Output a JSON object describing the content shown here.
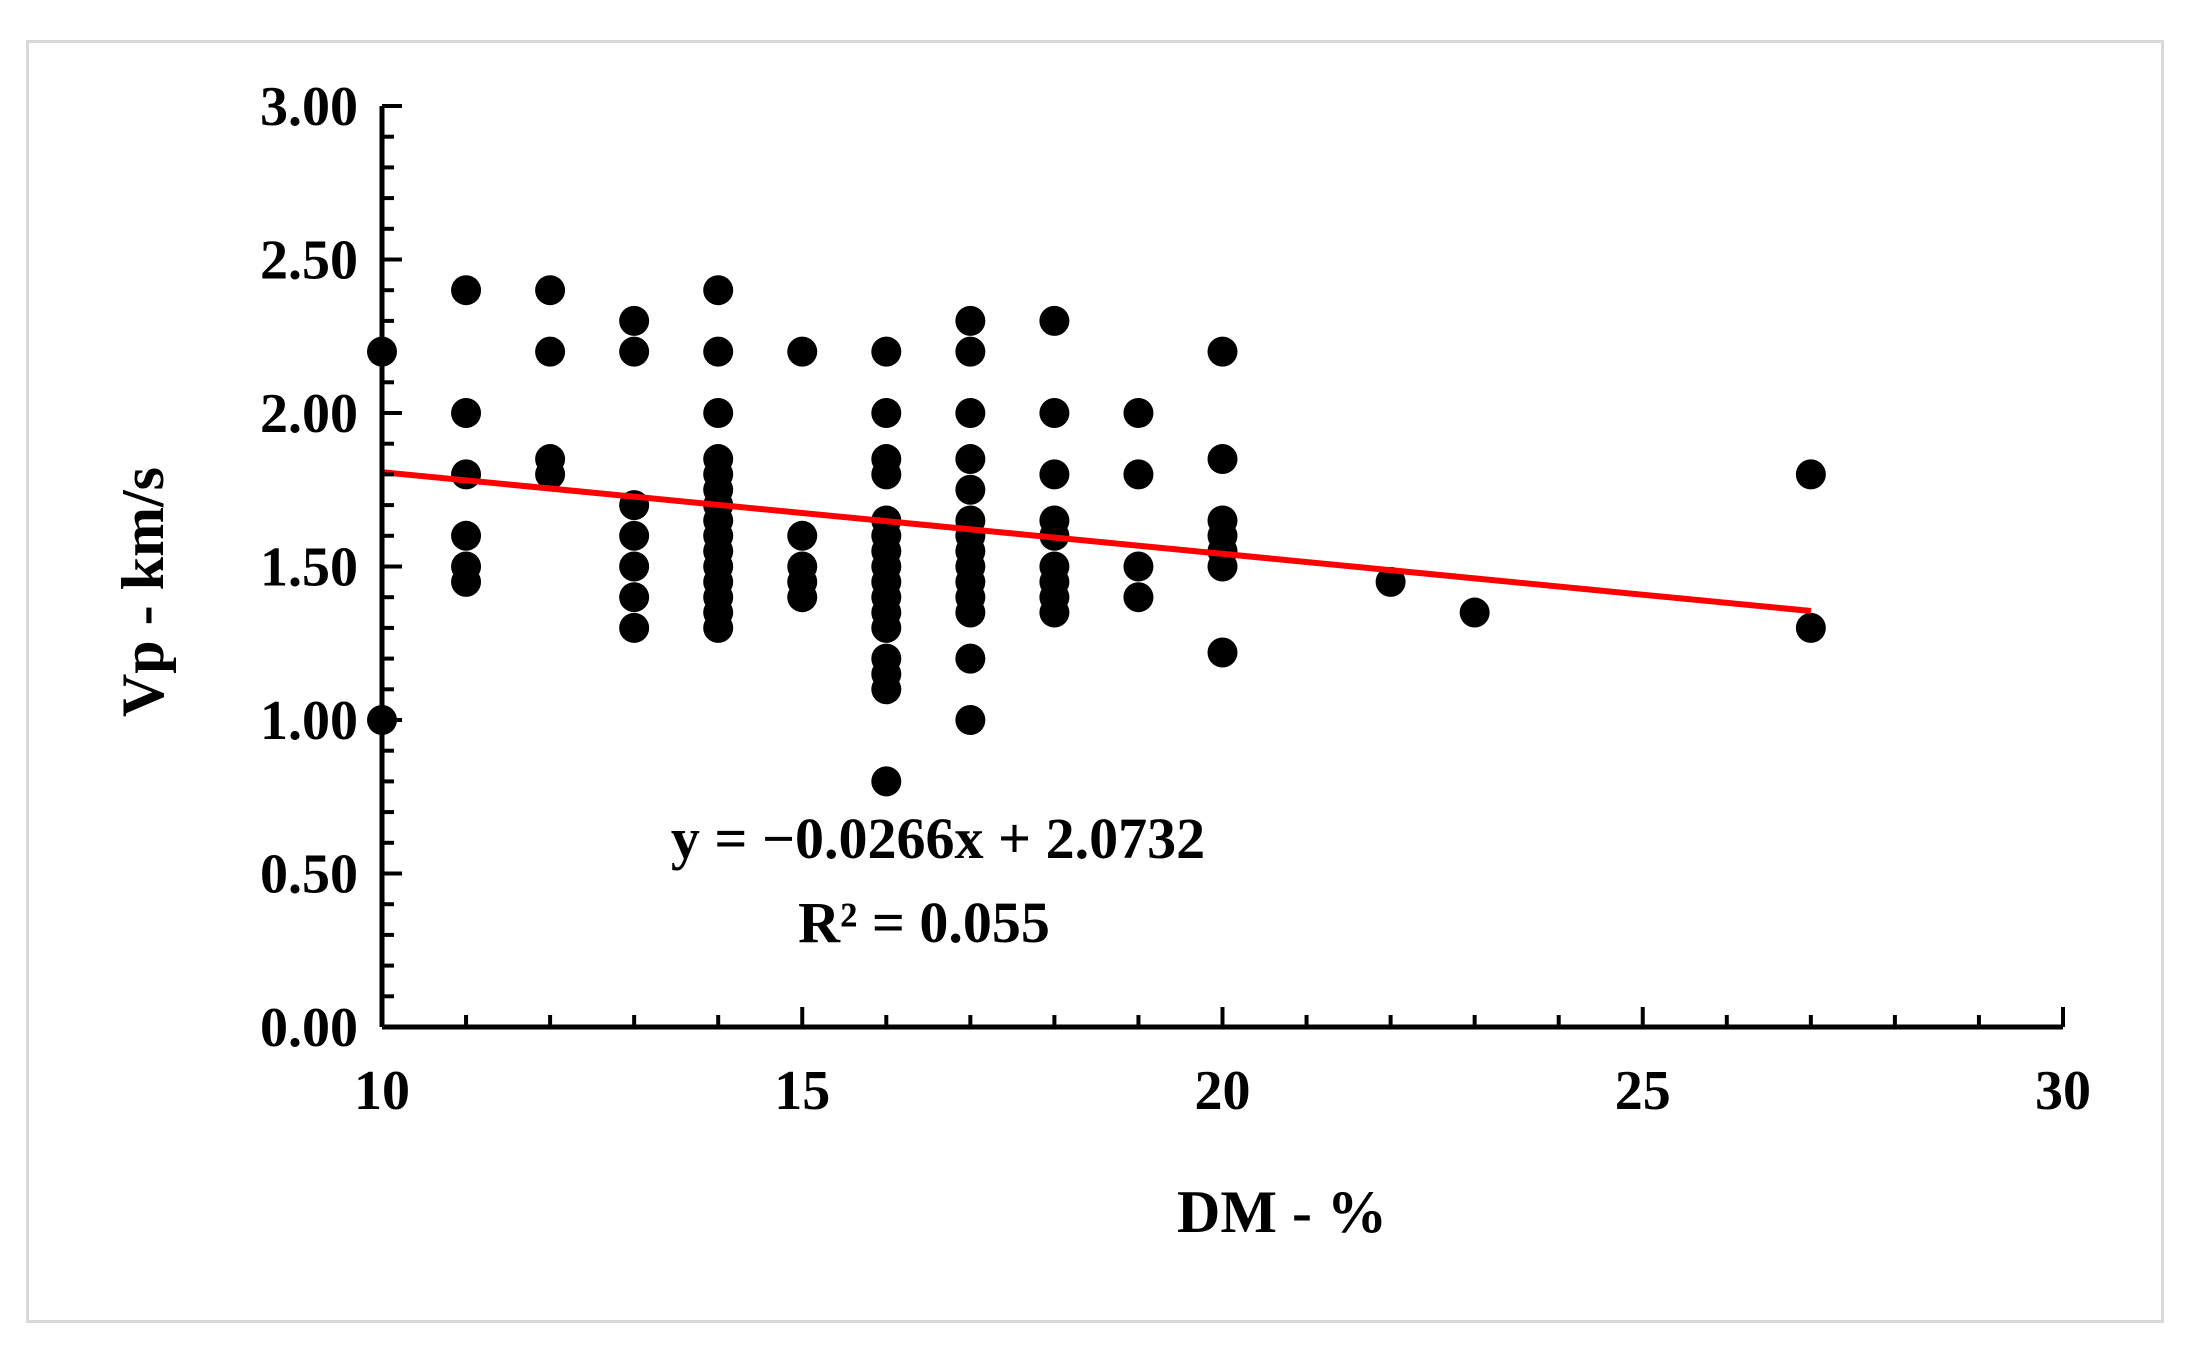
{
  "chart_data": {
    "type": "scatter",
    "xlabel": "DM - %",
    "ylabel": "Vp - km/s",
    "xlim": [
      10,
      30
    ],
    "ylim": [
      0,
      3
    ],
    "xticks": [
      "10",
      "15",
      "20",
      "25",
      "30"
    ],
    "yticks": [
      "0.00",
      "0.50",
      "1.00",
      "1.50",
      "2.00",
      "2.50",
      "3.00"
    ],
    "grid": false,
    "marker_color": "#000000",
    "trendline": {
      "slope": -0.0266,
      "intercept": 2.0732,
      "x_range": [
        10,
        27
      ],
      "color": "#ff0000"
    },
    "annotations": [
      "y = −0.0266x + 2.0732",
      "R² = 0.055"
    ],
    "points": [
      [
        10,
        2.2
      ],
      [
        10,
        1.0
      ],
      [
        11,
        2.4
      ],
      [
        11,
        2.0
      ],
      [
        11,
        1.8
      ],
      [
        11,
        1.6
      ],
      [
        11,
        1.5
      ],
      [
        11,
        1.45
      ],
      [
        12,
        2.4
      ],
      [
        12,
        2.2
      ],
      [
        12,
        1.85
      ],
      [
        12,
        1.8
      ],
      [
        13,
        2.3
      ],
      [
        13,
        2.2
      ],
      [
        13,
        1.7
      ],
      [
        13,
        1.6
      ],
      [
        13,
        1.5
      ],
      [
        13,
        1.4
      ],
      [
        13,
        1.3
      ],
      [
        14,
        2.4
      ],
      [
        14,
        2.2
      ],
      [
        14,
        2.0
      ],
      [
        14,
        1.85
      ],
      [
        14,
        1.8
      ],
      [
        14,
        1.75
      ],
      [
        14,
        1.7
      ],
      [
        14,
        1.65
      ],
      [
        14,
        1.6
      ],
      [
        14,
        1.55
      ],
      [
        14,
        1.5
      ],
      [
        14,
        1.45
      ],
      [
        14,
        1.4
      ],
      [
        14,
        1.35
      ],
      [
        14,
        1.3
      ],
      [
        15,
        2.2
      ],
      [
        15,
        1.6
      ],
      [
        15,
        1.5
      ],
      [
        15,
        1.45
      ],
      [
        15,
        1.4
      ],
      [
        16,
        2.2
      ],
      [
        16,
        2.0
      ],
      [
        16,
        1.85
      ],
      [
        16,
        1.8
      ],
      [
        16,
        1.65
      ],
      [
        16,
        1.6
      ],
      [
        16,
        1.55
      ],
      [
        16,
        1.5
      ],
      [
        16,
        1.45
      ],
      [
        16,
        1.4
      ],
      [
        16,
        1.35
      ],
      [
        16,
        1.3
      ],
      [
        16,
        1.2
      ],
      [
        16,
        1.15
      ],
      [
        16,
        1.1
      ],
      [
        16,
        0.8
      ],
      [
        17,
        2.3
      ],
      [
        17,
        2.2
      ],
      [
        17,
        2.0
      ],
      [
        17,
        1.85
      ],
      [
        17,
        1.75
      ],
      [
        17,
        1.65
      ],
      [
        17,
        1.6
      ],
      [
        17,
        1.55
      ],
      [
        17,
        1.5
      ],
      [
        17,
        1.45
      ],
      [
        17,
        1.4
      ],
      [
        17,
        1.35
      ],
      [
        17,
        1.2
      ],
      [
        17,
        1.0
      ],
      [
        18,
        2.3
      ],
      [
        18,
        2.0
      ],
      [
        18,
        1.8
      ],
      [
        18,
        1.65
      ],
      [
        18,
        1.6
      ],
      [
        18,
        1.5
      ],
      [
        18,
        1.45
      ],
      [
        18,
        1.4
      ],
      [
        18,
        1.35
      ],
      [
        19,
        2.0
      ],
      [
        19,
        1.8
      ],
      [
        19,
        1.5
      ],
      [
        19,
        1.4
      ],
      [
        20,
        2.2
      ],
      [
        20,
        1.85
      ],
      [
        20,
        1.65
      ],
      [
        20,
        1.6
      ],
      [
        20,
        1.55
      ],
      [
        20,
        1.5
      ],
      [
        20,
        1.22
      ],
      [
        22,
        1.45
      ],
      [
        23,
        1.35
      ],
      [
        27,
        1.8
      ],
      [
        27,
        1.3
      ]
    ]
  }
}
